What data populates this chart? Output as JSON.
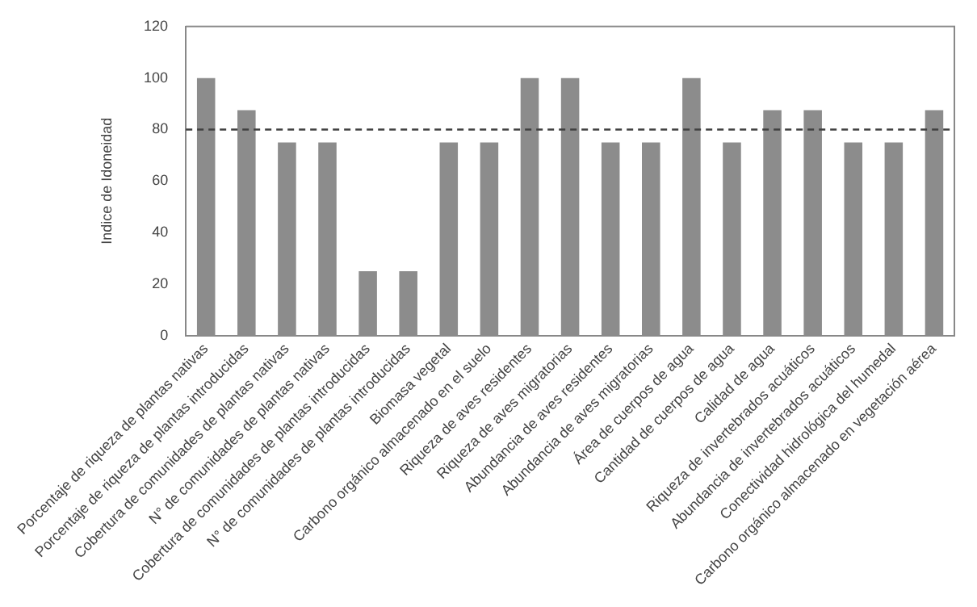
{
  "chart_data": {
    "type": "bar",
    "ylabel": "Indice de Idoneidad",
    "categories": [
      "Porcentaje de riqueza de plantas nativas",
      "Porcentaje de riqueza de plantas introducidas",
      "Cobertura de comunidades de plantas nativas",
      "N° de comunidades de plantas nativas",
      "Cobertura de comunidades de plantas introducidas",
      "N° de comunidades de plantas introducidas",
      "Biomasa vegetal",
      "Carbono orgánico almacenado en el suelo",
      "Riqueza de aves residentes",
      "Riqueza de aves migratorias",
      "Abundancia de aves residentes",
      "Abundancia de aves migratorias",
      "Área de cuerpos de agua",
      "Cantidad de cuerpos de agua",
      "Calidad de agua",
      "Riqueza de invertebrados acuáticos",
      "Abundancia de invertebrados acuáticos",
      "Conectividad hidrológica del humedal",
      "Carbono orgánico almacenado en vegetación aérea"
    ],
    "values": [
      100,
      87.5,
      75,
      75,
      25,
      25,
      75,
      75,
      100,
      100,
      75,
      75,
      100,
      75,
      87.5,
      87.5,
      75,
      75,
      87.5
    ],
    "color": "#8c8c8c",
    "ylim": [
      0,
      120
    ],
    "yticks": [
      0,
      20,
      40,
      60,
      80,
      100,
      120
    ],
    "grid": false,
    "ref_lines": [
      {
        "axis": "y",
        "value": 80,
        "color": "#404040",
        "line_style": "dashed"
      }
    ]
  }
}
